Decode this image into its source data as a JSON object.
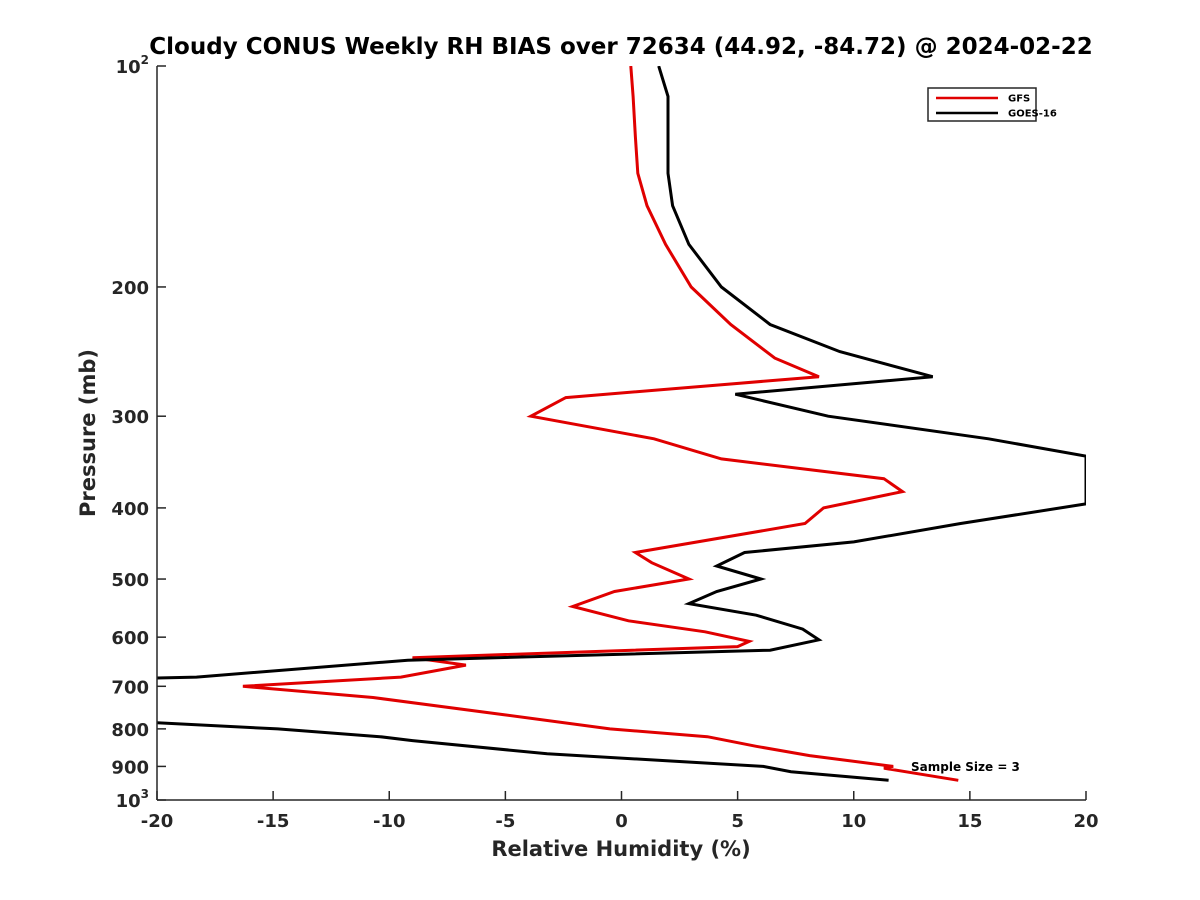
{
  "chart_data": {
    "type": "line",
    "title": "Cloudy CONUS Weekly RH BIAS over 72634 (44.92, -84.72) @ 2024-02-22",
    "xlabel": "Relative Humidity (%)",
    "ylabel": "Pressure (mb)",
    "xlim": [
      -20,
      20
    ],
    "ylim": [
      100,
      1000
    ],
    "yscale": "log",
    "y_reversed": true,
    "xticks": [
      -20,
      -15,
      -10,
      -5,
      0,
      5,
      10,
      15,
      20
    ],
    "xtick_labels": [
      "-20",
      "-15",
      "-10",
      "-5",
      "0",
      "5",
      "10",
      "15",
      "20"
    ],
    "yticks": [
      100,
      200,
      300,
      400,
      500,
      600,
      700,
      800,
      900,
      1000
    ],
    "ytick_labels": [
      {
        "base": "10",
        "exp": "2"
      },
      {
        "base": "200",
        "exp": ""
      },
      {
        "base": "300",
        "exp": ""
      },
      {
        "base": "400",
        "exp": ""
      },
      {
        "base": "500",
        "exp": ""
      },
      {
        "base": "600",
        "exp": ""
      },
      {
        "base": "700",
        "exp": ""
      },
      {
        "base": "800",
        "exp": ""
      },
      {
        "base": "900",
        "exp": ""
      },
      {
        "base": "10",
        "exp": "3"
      }
    ],
    "grid": false,
    "legend_position": "top-right",
    "annotation": "Sample Size = 3",
    "series": [
      {
        "name": "GFS",
        "color": "#e00000",
        "points": [
          [
            0.4,
            100
          ],
          [
            0.5,
            110
          ],
          [
            0.6,
            125
          ],
          [
            0.7,
            140
          ],
          [
            1.1,
            155
          ],
          [
            1.9,
            175
          ],
          [
            3.0,
            200
          ],
          [
            4.7,
            225
          ],
          [
            6.6,
            250
          ],
          [
            8.5,
            265
          ],
          [
            -2.4,
            283
          ],
          [
            -3.9,
            300
          ],
          [
            1.4,
            322
          ],
          [
            4.3,
            343
          ],
          [
            11.3,
            365
          ],
          [
            12.1,
            380
          ],
          [
            8.7,
            400
          ],
          [
            7.9,
            420
          ],
          [
            0.6,
            460
          ],
          [
            1.3,
            475
          ],
          [
            2.9,
            500
          ],
          [
            -0.3,
            520
          ],
          [
            -2.1,
            545
          ],
          [
            0.3,
            570
          ],
          [
            3.6,
            590
          ],
          [
            5.5,
            608
          ],
          [
            5.0,
            618
          ],
          [
            -9.0,
            640
          ],
          [
            -6.7,
            655
          ],
          [
            -9.5,
            680
          ],
          [
            -16.3,
            700
          ],
          [
            -10.7,
            725
          ],
          [
            -5.1,
            765
          ],
          [
            -0.5,
            800
          ],
          [
            3.7,
            820
          ],
          [
            5.8,
            845
          ],
          [
            8.1,
            870
          ],
          [
            11.7,
            900
          ],
          [
            11.3,
            905
          ],
          [
            14.5,
            940
          ]
        ]
      },
      {
        "name": "GOES-16",
        "color": "#000000",
        "points": [
          [
            1.6,
            100
          ],
          [
            2.0,
            110
          ],
          [
            2.0,
            125
          ],
          [
            2.0,
            140
          ],
          [
            2.2,
            155
          ],
          [
            2.9,
            175
          ],
          [
            4.3,
            200
          ],
          [
            6.4,
            225
          ],
          [
            9.4,
            245
          ],
          [
            13.4,
            265
          ],
          [
            4.9,
            280
          ],
          [
            8.9,
            300
          ],
          [
            15.8,
            322
          ],
          [
            20.0,
            340
          ],
          [
            20.0,
            395
          ],
          [
            14.6,
            420
          ],
          [
            10.0,
            445
          ],
          [
            5.3,
            460
          ],
          [
            4.1,
            480
          ],
          [
            6.0,
            500
          ],
          [
            4.1,
            520
          ],
          [
            2.9,
            540
          ],
          [
            5.8,
            560
          ],
          [
            7.8,
            585
          ],
          [
            8.5,
            605
          ],
          [
            6.4,
            625
          ],
          [
            -9.2,
            645
          ],
          [
            -18.3,
            680
          ],
          [
            -20.0,
            682
          ]
        ]
      },
      {
        "name": "GOES-16",
        "color": "#000000",
        "points": [
          [
            -20.0,
            785
          ],
          [
            -14.8,
            800
          ],
          [
            -10.4,
            820
          ],
          [
            -9.0,
            830
          ],
          [
            -3.2,
            865
          ],
          [
            6.1,
            900
          ],
          [
            7.3,
            915
          ],
          [
            11.5,
            940
          ]
        ]
      }
    ]
  }
}
